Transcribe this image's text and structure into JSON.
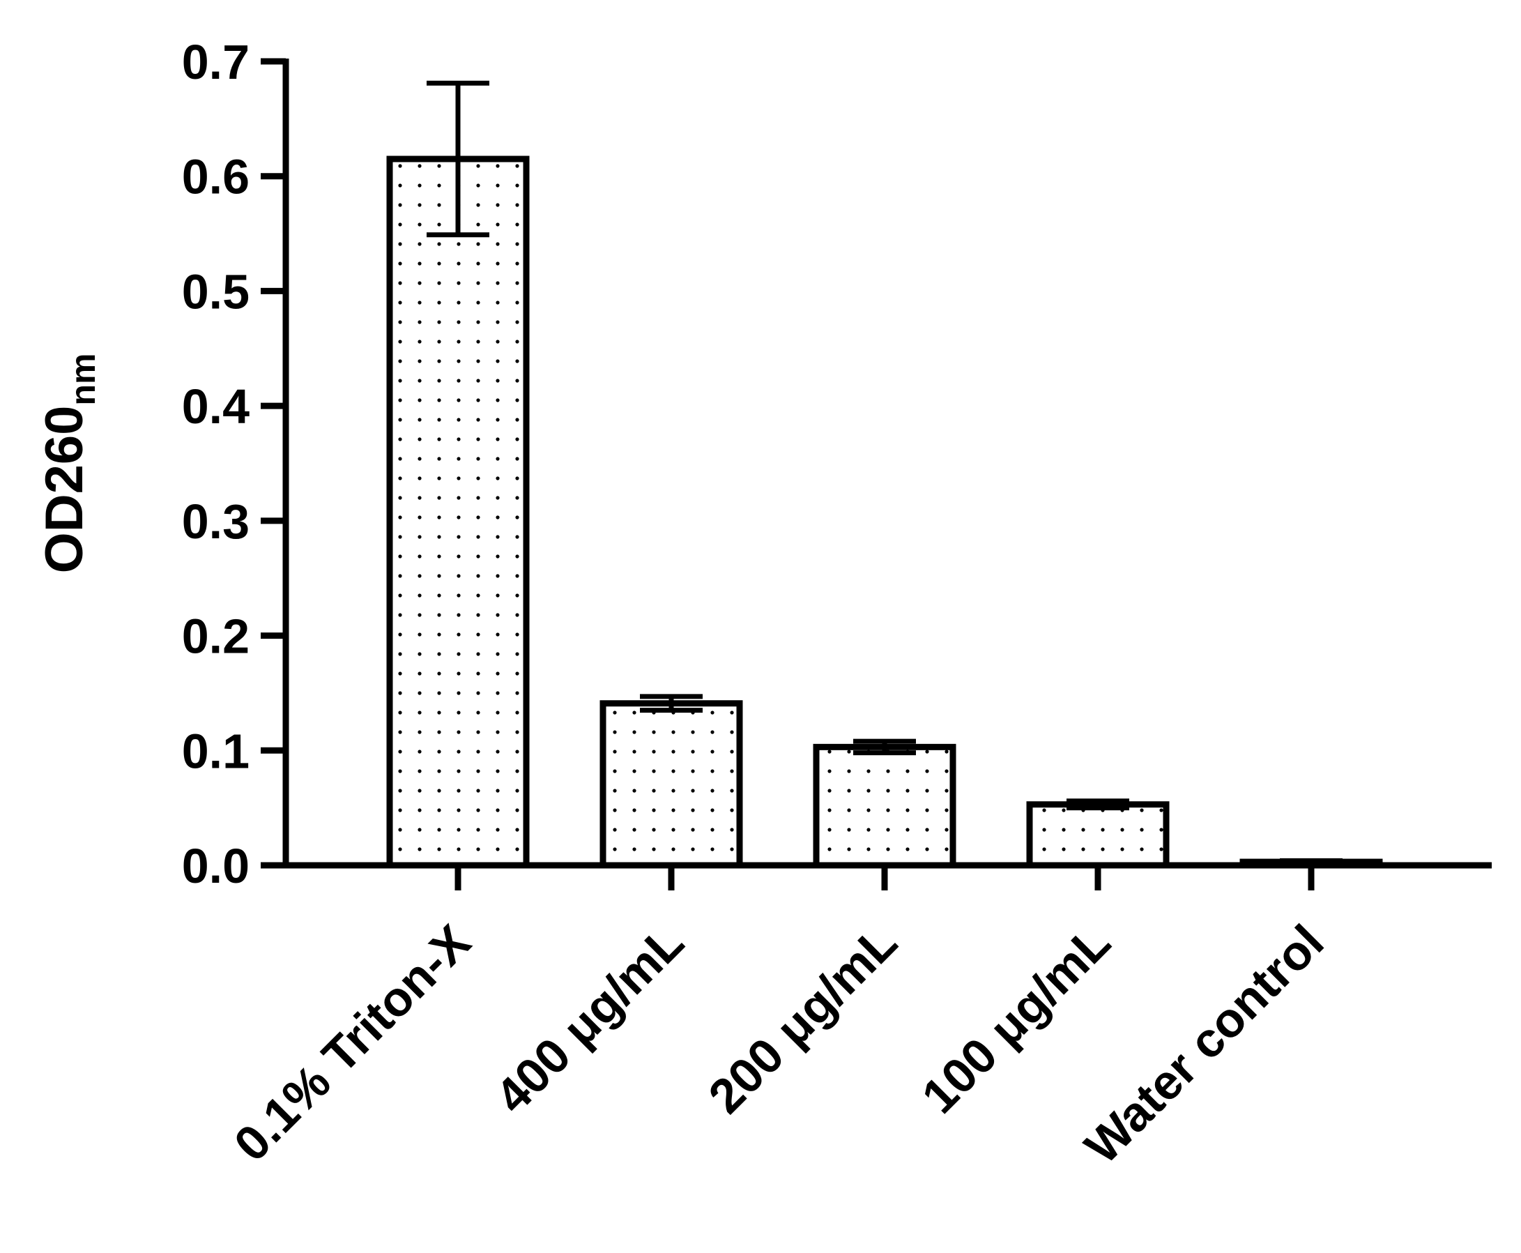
{
  "chart_data": {
    "type": "bar",
    "title": "",
    "xlabel": "",
    "ylabel": "OD260",
    "ylabel_subscript": "nm",
    "categories": [
      "0.1% Triton-X",
      "400 μg/mL",
      "200 μg/mL",
      "100 μg/mL",
      "Water control"
    ],
    "values": [
      0.615,
      0.141,
      0.103,
      0.053,
      0.003
    ],
    "errors": [
      0.066,
      0.006,
      0.005,
      0.003,
      0.001
    ],
    "ylim": [
      0,
      0.7
    ],
    "yticks": [
      "0.0",
      "0.1",
      "0.2",
      "0.3",
      "0.4",
      "0.5",
      "0.6",
      "0.7"
    ],
    "grid": false,
    "legend": "none",
    "bar_fill": "dotted",
    "colors": {
      "bar_edge": "#000000",
      "bar_fill": "#ffffff",
      "dots": "#000000"
    }
  }
}
